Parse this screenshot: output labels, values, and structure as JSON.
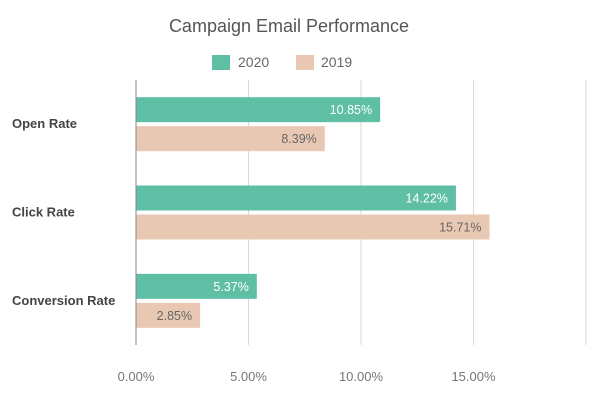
{
  "chart_data": {
    "type": "bar",
    "orientation": "horizontal",
    "title": "Campaign Email Performance",
    "categories": [
      "Open Rate",
      "Click Rate",
      "Conversion Rate"
    ],
    "series": [
      {
        "name": "2020",
        "color": "#5ebfa4",
        "values": [
          10.85,
          14.22,
          5.37
        ],
        "labels": [
          "10.85%",
          "14.22%",
          "5.37%"
        ]
      },
      {
        "name": "2019",
        "color": "#e8c8b3",
        "values": [
          8.39,
          15.71,
          2.85
        ],
        "labels": [
          "8.39%",
          "15.71%",
          "2.85%"
        ]
      }
    ],
    "xlim": [
      0,
      20
    ],
    "xticks": [
      0,
      5,
      10,
      15
    ],
    "xtick_labels": [
      "0.00%",
      "5.00%",
      "10.00%",
      "15.00%"
    ],
    "grid": true,
    "legend_position": "top-center"
  }
}
